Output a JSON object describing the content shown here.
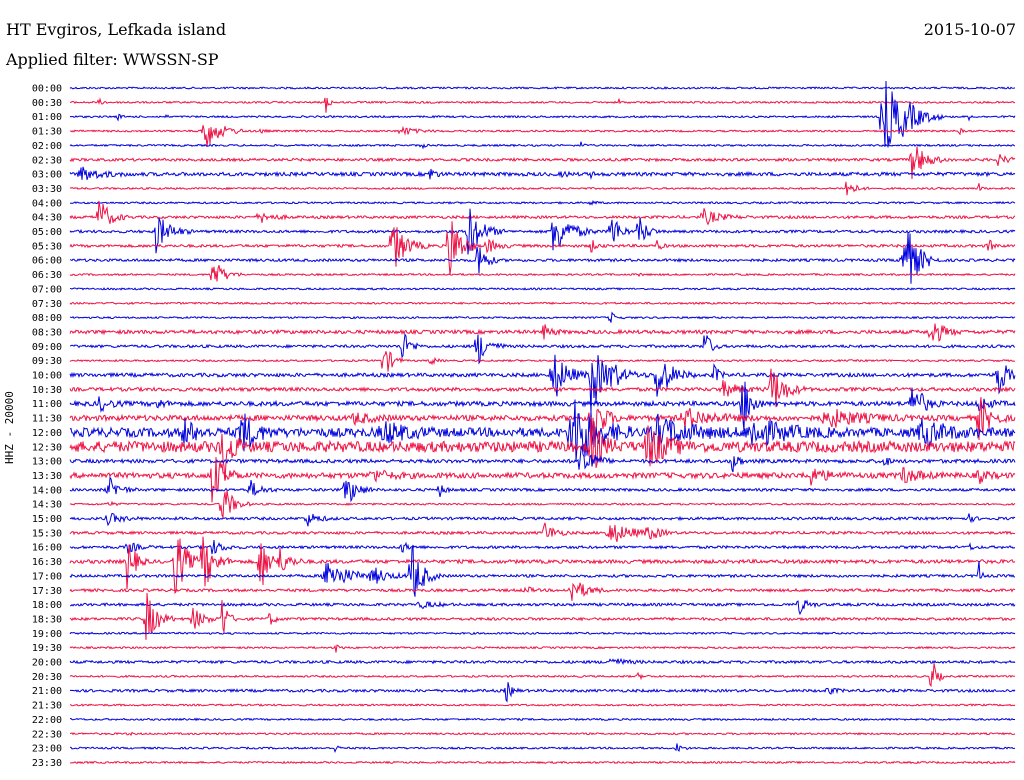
{
  "header": {
    "station": "HT Evgiros, Lefkada island",
    "date": "2015-10-07",
    "filter": "Applied filter: WWSSN-SP"
  },
  "colors": {
    "blue": "#0000dd",
    "red": "#ee1144"
  },
  "chart_data": {
    "type": "line",
    "title": "HT Evgiros, Lefkada island",
    "subtitle": "Applied filter: WWSSN-SP",
    "ylabel": "HHZ - 20000",
    "trace_minutes": 30,
    "rows": [
      {
        "time": "00:00",
        "color": "blue",
        "amp": 1,
        "events": []
      },
      {
        "time": "00:30",
        "color": "red",
        "amp": 1,
        "events": [
          [
            0.03,
            4,
            7
          ],
          [
            0.06,
            2,
            5
          ],
          [
            0.27,
            14,
            6
          ],
          [
            0.37,
            2,
            3
          ],
          [
            0.58,
            4,
            4
          ]
        ]
      },
      {
        "time": "01:00",
        "color": "blue",
        "amp": 1,
        "events": [
          [
            0.05,
            3,
            8
          ],
          [
            0.1,
            2,
            6
          ],
          [
            0.86,
            42,
            40
          ],
          [
            0.88,
            8,
            25
          ],
          [
            0.95,
            3,
            5
          ]
        ]
      },
      {
        "time": "01:30",
        "color": "red",
        "amp": 1,
        "events": [
          [
            0.14,
            22,
            30
          ],
          [
            0.2,
            3,
            8
          ],
          [
            0.35,
            5,
            25
          ],
          [
            0.94,
            4,
            5
          ]
        ]
      },
      {
        "time": "02:00",
        "color": "blue",
        "amp": 1,
        "events": [
          [
            0.37,
            4,
            8
          ],
          [
            0.54,
            4,
            6
          ]
        ]
      },
      {
        "time": "02:30",
        "color": "red",
        "amp": 1.5,
        "events": [
          [
            0.89,
            20,
            25
          ],
          [
            0.98,
            6,
            20
          ]
        ]
      },
      {
        "time": "03:00",
        "color": "blue",
        "amp": 2,
        "events": [
          [
            0.01,
            8,
            35
          ],
          [
            0.38,
            8,
            10
          ],
          [
            0.52,
            3,
            10
          ],
          [
            0.55,
            3,
            6
          ]
        ]
      },
      {
        "time": "03:30",
        "color": "red",
        "amp": 1,
        "events": [
          [
            0.82,
            12,
            15
          ],
          [
            0.96,
            8,
            5
          ]
        ]
      },
      {
        "time": "04:00",
        "color": "blue",
        "amp": 1,
        "events": [
          [
            0.55,
            4,
            8
          ]
        ]
      },
      {
        "time": "04:30",
        "color": "red",
        "amp": 1.5,
        "events": [
          [
            0.03,
            22,
            20
          ],
          [
            0.2,
            6,
            25
          ],
          [
            0.67,
            8,
            30
          ]
        ]
      },
      {
        "time": "05:00",
        "color": "blue",
        "amp": 1.5,
        "events": [
          [
            0.09,
            22,
            25
          ],
          [
            0.42,
            30,
            25
          ],
          [
            0.51,
            28,
            30
          ],
          [
            0.57,
            30,
            15
          ],
          [
            0.6,
            22,
            15
          ]
        ]
      },
      {
        "time": "05:30",
        "color": "red",
        "amp": 1.5,
        "events": [
          [
            0.34,
            30,
            25
          ],
          [
            0.4,
            45,
            20
          ],
          [
            0.44,
            8,
            20
          ],
          [
            0.55,
            8,
            10
          ],
          [
            0.62,
            6,
            8
          ],
          [
            0.97,
            8,
            10
          ]
        ]
      },
      {
        "time": "06:00",
        "color": "blue",
        "amp": 1.5,
        "events": [
          [
            0.43,
            25,
            15
          ],
          [
            0.88,
            50,
            25
          ]
        ]
      },
      {
        "time": "06:30",
        "color": "red",
        "amp": 1,
        "events": [
          [
            0.15,
            20,
            20
          ],
          [
            0.6,
            3,
            5
          ]
        ]
      },
      {
        "time": "07:00",
        "color": "blue",
        "amp": 1,
        "events": []
      },
      {
        "time": "07:30",
        "color": "red",
        "amp": 1,
        "events": []
      },
      {
        "time": "08:00",
        "color": "blue",
        "amp": 1,
        "events": [
          [
            0.57,
            8,
            10
          ]
        ]
      },
      {
        "time": "08:30",
        "color": "red",
        "amp": 2,
        "events": [
          [
            0.5,
            8,
            15
          ],
          [
            0.91,
            18,
            20
          ]
        ]
      },
      {
        "time": "09:00",
        "color": "blue",
        "amp": 1.5,
        "events": [
          [
            0.35,
            20,
            15
          ],
          [
            0.43,
            22,
            20
          ],
          [
            0.67,
            20,
            12
          ]
        ]
      },
      {
        "time": "09:30",
        "color": "red",
        "amp": 1,
        "events": [
          [
            0.33,
            25,
            15
          ],
          [
            0.38,
            6,
            10
          ]
        ]
      },
      {
        "time": "10:00",
        "color": "blue",
        "amp": 2,
        "events": [
          [
            0.51,
            30,
            25
          ],
          [
            0.55,
            50,
            20
          ],
          [
            0.57,
            12,
            30
          ],
          [
            0.62,
            30,
            25
          ],
          [
            0.68,
            12,
            10
          ],
          [
            0.98,
            30,
            15
          ]
        ]
      },
      {
        "time": "10:30",
        "color": "red",
        "amp": 2,
        "events": [
          [
            0.74,
            30,
            25
          ],
          [
            0.69,
            8,
            30
          ]
        ]
      },
      {
        "time": "11:00",
        "color": "blue",
        "amp": 2.5,
        "events": [
          [
            0.03,
            8,
            20
          ],
          [
            0.09,
            6,
            15
          ],
          [
            0.71,
            40,
            15
          ],
          [
            0.89,
            25,
            20
          ],
          [
            0.96,
            8,
            20
          ]
        ]
      },
      {
        "time": "11:30",
        "color": "red",
        "amp": 3,
        "events": [
          [
            0.3,
            6,
            30
          ],
          [
            0.55,
            40,
            20
          ],
          [
            0.65,
            10,
            50
          ],
          [
            0.8,
            10,
            60
          ],
          [
            0.96,
            25,
            20
          ]
        ]
      },
      {
        "time": "12:00",
        "color": "blue",
        "amp": 5,
        "events": [
          [
            0.12,
            15,
            20
          ],
          [
            0.18,
            25,
            25
          ],
          [
            0.33,
            12,
            40
          ],
          [
            0.53,
            50,
            40
          ],
          [
            0.62,
            15,
            60
          ],
          [
            0.72,
            15,
            60
          ],
          [
            0.9,
            15,
            40
          ]
        ]
      },
      {
        "time": "12:30",
        "color": "red",
        "amp": 6,
        "events": [
          [
            0.16,
            50,
            15
          ],
          [
            0.55,
            30,
            20
          ],
          [
            0.61,
            25,
            30
          ]
        ]
      },
      {
        "time": "13:00",
        "color": "blue",
        "amp": 2,
        "events": [
          [
            0.54,
            25,
            20
          ],
          [
            0.7,
            25,
            8
          ],
          [
            0.86,
            12,
            6
          ]
        ]
      },
      {
        "time": "13:30",
        "color": "red",
        "amp": 3,
        "events": [
          [
            0.15,
            30,
            20
          ],
          [
            0.32,
            6,
            30
          ],
          [
            0.78,
            10,
            30
          ],
          [
            0.88,
            8,
            30
          ],
          [
            0.96,
            8,
            15
          ]
        ]
      },
      {
        "time": "14:00",
        "color": "blue",
        "amp": 1.5,
        "events": [
          [
            0.04,
            14,
            20
          ],
          [
            0.19,
            10,
            20
          ],
          [
            0.29,
            22,
            20
          ],
          [
            0.39,
            8,
            10
          ]
        ]
      },
      {
        "time": "14:30",
        "color": "red",
        "amp": 1,
        "events": [
          [
            0.16,
            25,
            20
          ],
          [
            0.04,
            3,
            10
          ]
        ]
      },
      {
        "time": "15:00",
        "color": "blue",
        "amp": 1.5,
        "events": [
          [
            0.04,
            6,
            25
          ],
          [
            0.25,
            8,
            20
          ],
          [
            0.95,
            4,
            10
          ]
        ]
      },
      {
        "time": "15:30",
        "color": "red",
        "amp": 1.5,
        "events": [
          [
            0.5,
            12,
            20
          ],
          [
            0.57,
            12,
            40
          ],
          [
            0.61,
            8,
            20
          ]
        ]
      },
      {
        "time": "16:00",
        "color": "blue",
        "amp": 1.5,
        "events": [
          [
            0.06,
            6,
            20
          ],
          [
            0.15,
            8,
            20
          ],
          [
            0.35,
            8,
            10
          ],
          [
            0.95,
            4,
            8
          ]
        ]
      },
      {
        "time": "16:30",
        "color": "red",
        "amp": 2,
        "events": [
          [
            0.06,
            30,
            15
          ],
          [
            0.11,
            45,
            20
          ],
          [
            0.14,
            35,
            20
          ],
          [
            0.2,
            40,
            15
          ],
          [
            0.22,
            15,
            20
          ]
        ]
      },
      {
        "time": "17:00",
        "color": "blue",
        "amp": 1.5,
        "events": [
          [
            0.27,
            18,
            40
          ],
          [
            0.32,
            8,
            30
          ],
          [
            0.36,
            40,
            20
          ],
          [
            0.96,
            20,
            5
          ]
        ]
      },
      {
        "time": "17:30",
        "color": "red",
        "amp": 1.5,
        "events": [
          [
            0.53,
            14,
            25
          ],
          [
            0.48,
            6,
            10
          ]
        ]
      },
      {
        "time": "18:00",
        "color": "blue",
        "amp": 1.5,
        "events": [
          [
            0.37,
            4,
            25
          ],
          [
            0.77,
            10,
            15
          ]
        ]
      },
      {
        "time": "18:30",
        "color": "red",
        "amp": 1.5,
        "events": [
          [
            0.08,
            30,
            20
          ],
          [
            0.13,
            12,
            20
          ],
          [
            0.16,
            30,
            10
          ],
          [
            0.21,
            8,
            10
          ]
        ]
      },
      {
        "time": "19:00",
        "color": "blue",
        "amp": 1,
        "events": []
      },
      {
        "time": "19:30",
        "color": "red",
        "amp": 1,
        "events": [
          [
            0.28,
            6,
            8
          ]
        ]
      },
      {
        "time": "20:00",
        "color": "blue",
        "amp": 1.5,
        "events": [
          [
            0.57,
            5,
            25
          ]
        ]
      },
      {
        "time": "20:30",
        "color": "red",
        "amp": 1,
        "events": [
          [
            0.91,
            25,
            10
          ],
          [
            0.6,
            3,
            10
          ]
        ]
      },
      {
        "time": "21:00",
        "color": "blue",
        "amp": 1.5,
        "events": [
          [
            0.46,
            14,
            10
          ],
          [
            0.8,
            4,
            15
          ]
        ]
      },
      {
        "time": "21:30",
        "color": "red",
        "amp": 1,
        "events": []
      },
      {
        "time": "22:00",
        "color": "blue",
        "amp": 1,
        "events": []
      },
      {
        "time": "22:30",
        "color": "red",
        "amp": 1,
        "events": [
          [
            0.06,
            3,
            6
          ]
        ]
      },
      {
        "time": "23:00",
        "color": "blue",
        "amp": 1,
        "events": [
          [
            0.28,
            4,
            6
          ],
          [
            0.64,
            6,
            10
          ]
        ]
      },
      {
        "time": "23:30",
        "color": "red",
        "amp": 1,
        "events": []
      }
    ]
  }
}
